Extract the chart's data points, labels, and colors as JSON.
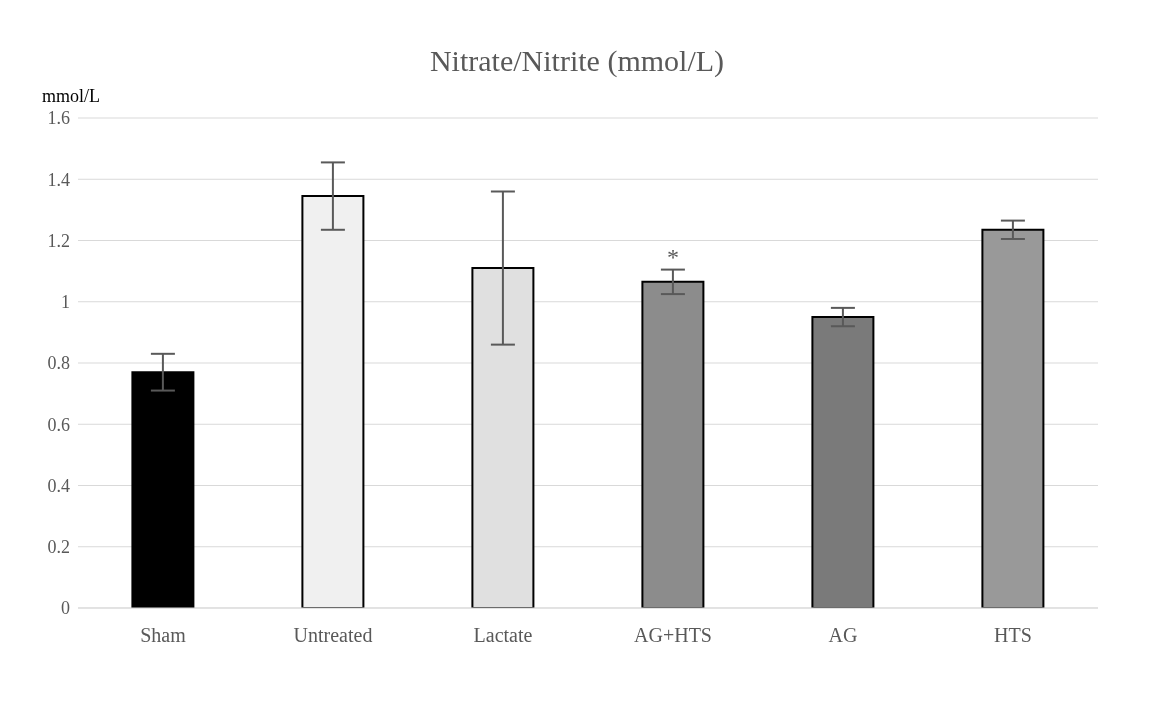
{
  "chart_data": {
    "type": "bar",
    "title": "Nitrate/Nitrite (mmol/L)",
    "ylabel": "mmol/L",
    "categories": [
      "Sham",
      "Untreated",
      "Lactate",
      "AG+HTS",
      "AG",
      "HTS"
    ],
    "values": [
      0.77,
      1.345,
      1.11,
      1.065,
      0.95,
      1.235
    ],
    "errors": [
      0.06,
      0.11,
      0.25,
      0.04,
      0.03,
      0.03
    ],
    "colors": [
      "#000000",
      "#f0f0f0",
      "#e0e0e0",
      "#8c8c8c",
      "#7a7a7a",
      "#999999"
    ],
    "ylim": [
      0,
      1.6
    ],
    "yticks": [
      0,
      0.2,
      0.4,
      0.6,
      0.8,
      1,
      1.2,
      1.4,
      1.6
    ],
    "grid": "y",
    "legend": false,
    "annotations": [
      {
        "text": "*",
        "x": "AG+HTS",
        "y": 1.105
      }
    ]
  }
}
